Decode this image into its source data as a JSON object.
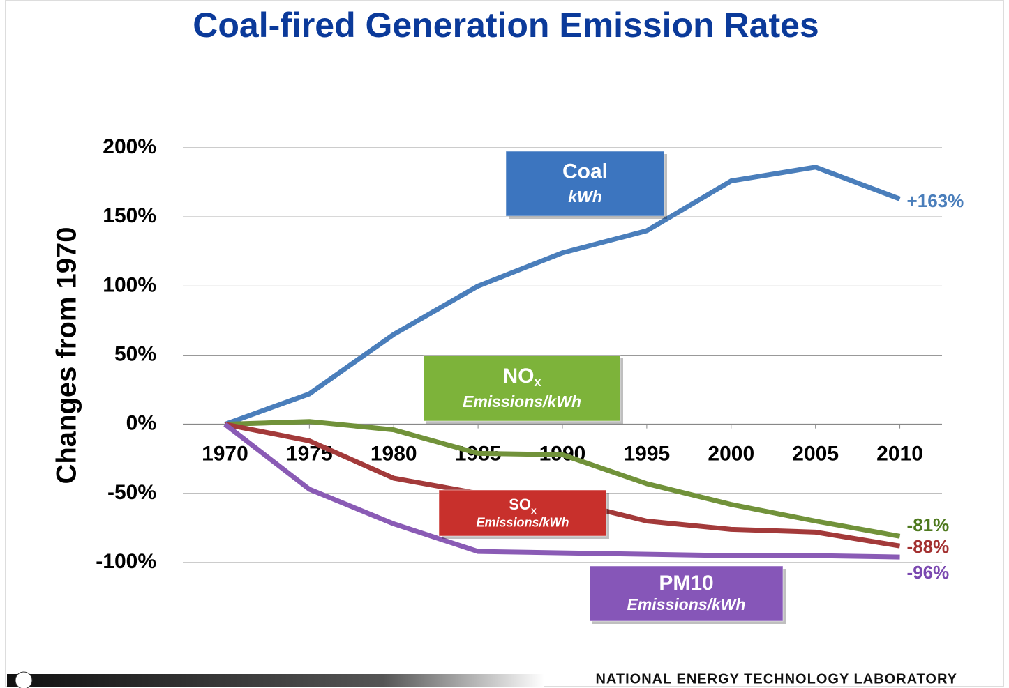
{
  "chart_data": {
    "type": "line",
    "title": "Coal-fired Generation Emission Rates",
    "y_label": "Changes from 1970",
    "footer": "NATIONAL ENERGY TECHNOLOGY LABORATORY",
    "x": [
      1970,
      1975,
      1980,
      1985,
      1990,
      1995,
      2000,
      2005,
      2010
    ],
    "xlim": [
      1967.5,
      2012.5
    ],
    "xticks": [
      1970,
      1975,
      1980,
      1985,
      1990,
      1995,
      2000,
      2005,
      2010
    ],
    "ylim": [
      -100,
      200
    ],
    "yticks": [
      {
        "value": -100,
        "label": "-100%"
      },
      {
        "value": -50,
        "label": "-50%"
      },
      {
        "value": 0,
        "label": "0%"
      },
      {
        "value": 50,
        "label": "50%"
      },
      {
        "value": 100,
        "label": "100%"
      },
      {
        "value": 150,
        "label": "150%"
      },
      {
        "value": 200,
        "label": "200%"
      }
    ],
    "grid": true,
    "series": [
      {
        "name": "Coal",
        "unit": "kWh",
        "color": "#4a7ebb",
        "box_color": "#3c75bf",
        "label_color": "#4a7ebb",
        "values": [
          0,
          22,
          65,
          100,
          124,
          140,
          176,
          186,
          163
        ],
        "value_labels": [
          null,
          null,
          null,
          null,
          null,
          null,
          null,
          null,
          "+163%"
        ]
      },
      {
        "name": "NO",
        "subscript": "x",
        "unit": "Emissions/kWh",
        "color": "#71923a",
        "box_color": "#7db33a",
        "label_color": "#4f7a1f",
        "values": [
          0,
          2,
          -4,
          -21,
          -22,
          -43,
          -58,
          -70,
          -81
        ],
        "value_labels": [
          null,
          null,
          null,
          null,
          null,
          null,
          null,
          null,
          "-81%"
        ]
      },
      {
        "name": "SO",
        "subscript": "x",
        "unit": "Emissions/kWh",
        "color": "#a33a3a",
        "box_color": "#c8302c",
        "label_color": "#a33030",
        "values": [
          0,
          -12,
          -39,
          -50,
          -55,
          -70,
          -76,
          -78,
          -88
        ],
        "value_labels": [
          null,
          null,
          null,
          null,
          null,
          null,
          null,
          null,
          "-88%"
        ]
      },
      {
        "name": "PM10",
        "unit": "Emissions/kWh",
        "color": "#8a5bb5",
        "box_color": "#8656b8",
        "label_color": "#7a48b0",
        "values": [
          0,
          -47,
          -72,
          -92,
          -93,
          -94,
          -95,
          -95,
          -96
        ],
        "value_labels": [
          null,
          null,
          null,
          null,
          null,
          null,
          null,
          null,
          "-96%"
        ]
      }
    ]
  }
}
